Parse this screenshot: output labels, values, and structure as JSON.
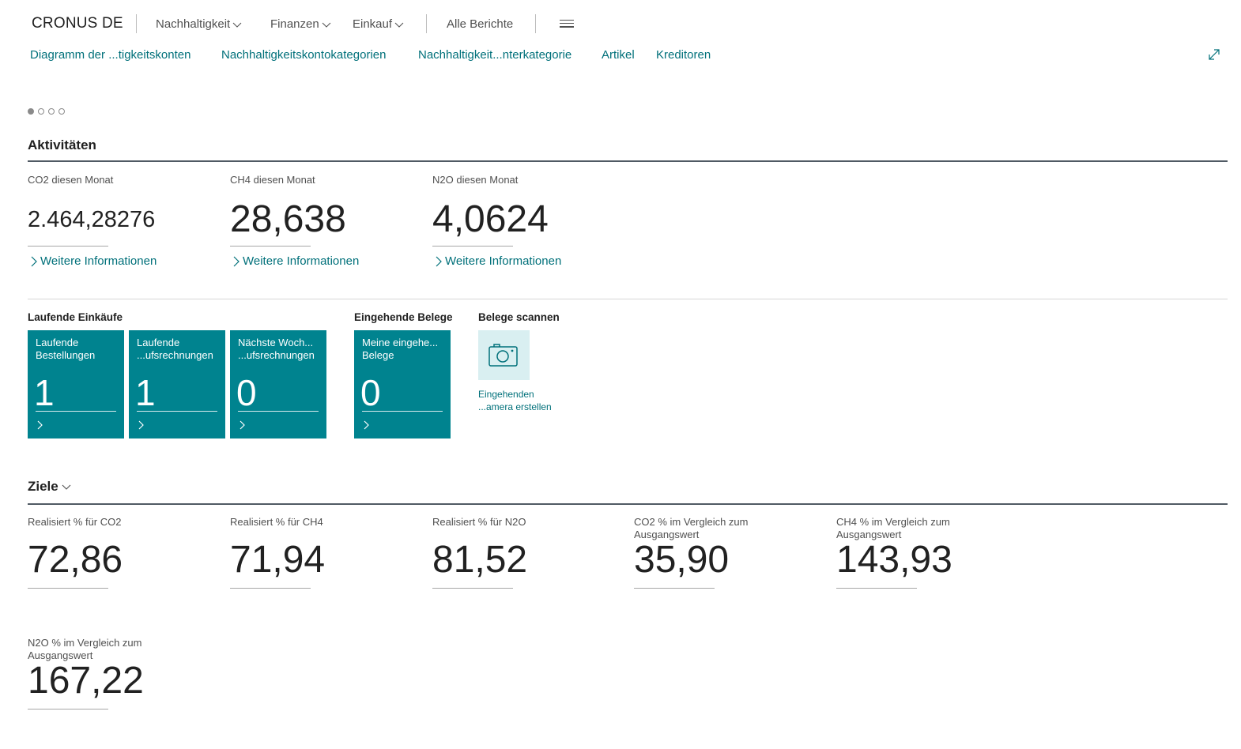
{
  "nav": {
    "company": "CRONUS DE",
    "menus": [
      {
        "label": "Nachhaltigkeit"
      },
      {
        "label": "Finanzen"
      },
      {
        "label": "Einkauf"
      }
    ],
    "all_reports": "Alle Berichte"
  },
  "actions": [
    "Diagramm der ...tigkeitskonten",
    "Nachhaltigkeitskontokategorien",
    "Nachhaltigkeit...nterkategorie",
    "Artikel",
    "Kreditoren"
  ],
  "activities": {
    "title": "Aktivitäten",
    "cues": [
      {
        "label": "CO2 diesen Monat",
        "value": "2.464,28276",
        "more": "Weitere Informationen"
      },
      {
        "label": "CH4 diesen Monat",
        "value": "28,638",
        "more": "Weitere Informationen"
      },
      {
        "label": "N2O diesen Monat",
        "value": "4,0624",
        "more": "Weitere Informationen"
      }
    ]
  },
  "groups": {
    "purchases": {
      "label": "Laufende Einkäufe",
      "tiles": [
        {
          "line1": "Laufende",
          "line2": "Bestellungen",
          "value": "1"
        },
        {
          "line1": "Laufende",
          "line2": "...ufsrechnungen",
          "value": "1"
        },
        {
          "line1": "Nächste Woch...",
          "line2": "...ufsrechnungen",
          "value": "0"
        }
      ]
    },
    "incoming": {
      "label": "Eingehende Belege",
      "tiles": [
        {
          "line1": "Meine eingehe...",
          "line2": "Belege",
          "value": "0"
        }
      ]
    },
    "scan": {
      "label": "Belege scannen",
      "line1": "Eingehenden",
      "line2": "...amera erstellen"
    }
  },
  "goals": {
    "title": "Ziele",
    "cues": [
      {
        "label1": "Realisiert % für CO2",
        "label2": "",
        "value": "72,86"
      },
      {
        "label1": "Realisiert % für CH4",
        "label2": "",
        "value": "71,94"
      },
      {
        "label1": "Realisiert % für N2O",
        "label2": "",
        "value": "81,52"
      },
      {
        "label1": "CO2 % im Vergleich zum",
        "label2": "Ausgangswert",
        "value": "35,90"
      },
      {
        "label1": "CH4 % im Vergleich zum",
        "label2": "Ausgangswert",
        "value": "143,93"
      },
      {
        "label1": "N2O % im Vergleich zum",
        "label2": "Ausgangswert",
        "value": "167,22"
      }
    ]
  },
  "colors": {
    "accent": "#00707a",
    "tile": "#00838f",
    "scan_tile": "#d9eff1"
  }
}
